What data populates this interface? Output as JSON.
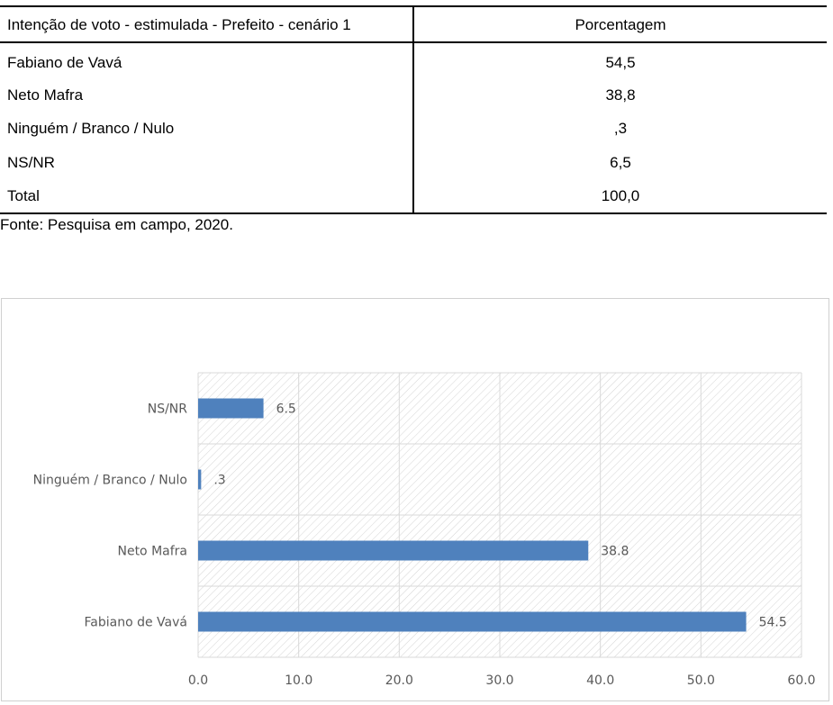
{
  "table": {
    "header_label": "Intenção de voto - estimulada - Prefeito - cenário 1",
    "header_value": "Porcentagem",
    "rows": [
      {
        "label": "Fabiano de Vavá",
        "value": "54,5"
      },
      {
        "label": "Neto Mafra",
        "value": "38,8"
      },
      {
        "label": "Ninguém / Branco / Nulo",
        "value": ",3"
      },
      {
        "label": "NS/NR",
        "value": "6,5"
      },
      {
        "label": "Total",
        "value": "100,0"
      }
    ],
    "source": "Fonte: Pesquisa em campo, 2020."
  },
  "chart_data": {
    "type": "bar",
    "orientation": "horizontal",
    "categories": [
      "Fabiano de Vavá",
      "Neto Mafra",
      "Ninguém / Branco / Nulo",
      "NS/NR"
    ],
    "values": [
      54.5,
      38.8,
      0.3,
      6.5
    ],
    "data_labels": [
      "54.5",
      "38.8",
      ".3",
      "6.5"
    ],
    "xlim": [
      0,
      60
    ],
    "xticks": [
      0,
      10,
      20,
      30,
      40,
      50,
      60
    ],
    "xtick_labels": [
      "0.0",
      "10.0",
      "20.0",
      "30.0",
      "40.0",
      "50.0",
      "60.0"
    ],
    "title": "",
    "xlabel": "",
    "ylabel": "",
    "grid": true,
    "plot_background": "hatched",
    "colors": {
      "bar": "#4f81bd",
      "grid": "#d9d9d9",
      "hatch": "#d4d4d4",
      "text": "#595959"
    }
  }
}
